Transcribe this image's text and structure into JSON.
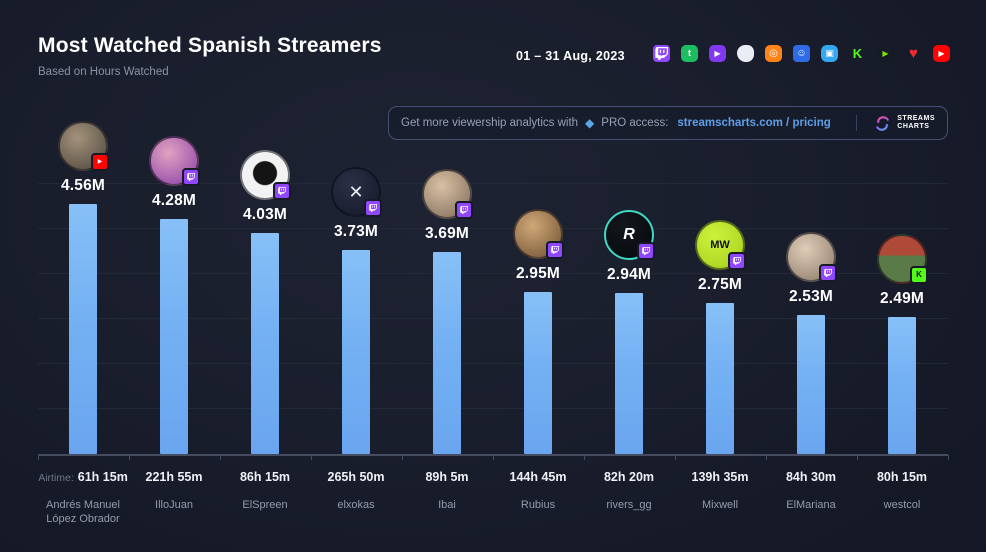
{
  "header": {
    "title": "Most Watched Spanish Streamers",
    "subtitle": "Based on Hours Watched",
    "date_range": "01 – 31 Aug, 2023"
  },
  "platform_bar": {
    "icons": [
      {
        "name": "twitch",
        "bg": "#9146ff",
        "fg": "#ffffff",
        "glyph": "twitch",
        "radius": "4px"
      },
      {
        "name": "trovo",
        "bg": "#1dbe60",
        "fg": "#ffffff",
        "glyph": "dino",
        "radius": "5px"
      },
      {
        "name": "vk-play",
        "bg": "#8038f0",
        "fg": "#ffffff",
        "glyph": "play",
        "radius": "5px"
      },
      {
        "name": "nimo-tv",
        "bg": "#e9edf4",
        "fg": "#c9d2e0",
        "glyph": "ghost",
        "radius": "50% 42% 46% 55%"
      },
      {
        "name": "booyah",
        "bg": "#ff8316",
        "fg": "#ffffff",
        "glyph": "circle",
        "radius": "5px"
      },
      {
        "name": "nonolive",
        "bg": "#2f6be4",
        "fg": "#ffffff",
        "glyph": "face",
        "radius": "4px"
      },
      {
        "name": "bigo-live",
        "bg": "#35a6f0",
        "fg": "#ffffff",
        "glyph": "cam",
        "radius": "6px"
      },
      {
        "name": "kick",
        "bg": "none",
        "fg": "#53fc18",
        "glyph": "K",
        "radius": "0"
      },
      {
        "name": "rumble",
        "bg": "#161b26",
        "fg": "#74e010",
        "glyph": "play",
        "radius": "50%"
      },
      {
        "name": "likee",
        "bg": "none",
        "fg": "#e62e2e",
        "glyph": "heart",
        "radius": "0"
      },
      {
        "name": "youtube",
        "bg": "#ff0202",
        "fg": "#ffffff",
        "glyph": "play",
        "radius": "5px"
      }
    ]
  },
  "promo_banner": {
    "text_prefix": "Get more viewership analytics with",
    "diamond_glyph": "◆",
    "text_mid": "PRO access:",
    "link_label": "streamscharts.com / pricing",
    "logo_line1": "STREAMS",
    "logo_line2": "CHARTS",
    "link_color": "#5f9fe8"
  },
  "chart_data": {
    "type": "bar",
    "title": "Most Watched Spanish Streamers",
    "subtitle": "Based on Hours Watched",
    "period": "01 – 31 Aug, 2023",
    "value_unit": "hours watched (millions)",
    "ylim": [
      0,
      4.56
    ],
    "grid": true,
    "legend": false,
    "bar_color": "#74b1f3",
    "categories": [
      "Andrés Manuel López Obrador",
      "IlloJuan",
      "ElSpreen",
      "elxokas",
      "Ibai",
      "Rubius",
      "rivers_gg",
      "Mixwell",
      "ElMariana",
      "westcol"
    ],
    "series": [
      {
        "name": "Hours Watched",
        "values": [
          4.56,
          4.28,
          4.03,
          3.73,
          3.69,
          2.95,
          2.94,
          2.75,
          2.53,
          2.49
        ],
        "labels": [
          "4.56M",
          "4.28M",
          "4.03M",
          "3.73M",
          "3.69M",
          "2.95M",
          "2.94M",
          "2.75M",
          "2.53M",
          "2.49M"
        ]
      }
    ],
    "airtime_prefix": "Airtime:",
    "airtimes": [
      "61h 15m",
      "221h 55m",
      "86h 15m",
      "265h 50m",
      "89h 5m",
      "144h 45m",
      "82h 20m",
      "139h 35m",
      "84h 30m",
      "80h 15m"
    ],
    "streamers": [
      {
        "name": "Andrés Manuel López Obrador",
        "hours_watched": "4.56M",
        "value_m": 4.56,
        "airtime": "61h 15m",
        "platform": "youtube",
        "avatar": {
          "mode": "radial",
          "bg": [
            "#a4927c",
            "#4e463c"
          ],
          "ring": null,
          "text": "",
          "text_color": "#ffffff",
          "text_size": 12
        }
      },
      {
        "name": "IlloJuan",
        "hours_watched": "4.28M",
        "value_m": 4.28,
        "airtime": "221h 55m",
        "platform": "twitch",
        "avatar": {
          "mode": "radial",
          "bg": [
            "#e0a3c0",
            "#8a3da6"
          ],
          "ring": null,
          "text": "",
          "text_color": "#ffffff",
          "text_size": 12
        }
      },
      {
        "name": "ElSpreen",
        "hours_watched": "4.03M",
        "value_m": 4.03,
        "airtime": "86h 15m",
        "platform": "twitch",
        "avatar": {
          "mode": "silhouette",
          "bg": [
            "#141414",
            "#f2f2f2"
          ],
          "ring": null,
          "text": "",
          "text_color": "#000000",
          "text_size": 12
        }
      },
      {
        "name": "elxokas",
        "hours_watched": "3.73M",
        "value_m": 3.73,
        "airtime": "265h 50m",
        "platform": "twitch",
        "avatar": {
          "mode": "radial",
          "bg": [
            "#2b3048",
            "#141827"
          ],
          "ring": null,
          "text": "✕",
          "text_color": "#e8ecf2",
          "text_size": 18
        }
      },
      {
        "name": "Ibai",
        "hours_watched": "3.69M",
        "value_m": 3.69,
        "airtime": "89h 5m",
        "platform": "twitch",
        "avatar": {
          "mode": "radial",
          "bg": [
            "#d8c0a4",
            "#7e6a58"
          ],
          "ring": null,
          "text": "",
          "text_color": "#ffffff",
          "text_size": 12
        }
      },
      {
        "name": "Rubius",
        "hours_watched": "2.95M",
        "value_m": 2.95,
        "airtime": "144h 45m",
        "platform": "twitch",
        "avatar": {
          "mode": "radial",
          "bg": [
            "#d0a878",
            "#6e5030"
          ],
          "ring": null,
          "text": "",
          "text_color": "#ffffff",
          "text_size": 12
        }
      },
      {
        "name": "rivers_gg",
        "hours_watched": "2.94M",
        "value_m": 2.94,
        "airtime": "82h 20m",
        "platform": "twitch",
        "avatar": {
          "mode": "radial",
          "bg": [
            "#13181d",
            "#05070a"
          ],
          "ring": "#3fd8c4",
          "text": "R",
          "text_color": "#ffffff",
          "text_size": 16
        }
      },
      {
        "name": "Mixwell",
        "hours_watched": "2.75M",
        "value_m": 2.75,
        "airtime": "139h 35m",
        "platform": "twitch",
        "avatar": {
          "mode": "radial",
          "bg": [
            "#cdf23c",
            "#a4cf1c"
          ],
          "ring": null,
          "text": "MW",
          "text_color": "#111111",
          "text_size": 11
        }
      },
      {
        "name": "ElMariana",
        "hours_watched": "2.53M",
        "value_m": 2.53,
        "airtime": "84h 30m",
        "platform": "twitch",
        "avatar": {
          "mode": "radial",
          "bg": [
            "#e0cdb8",
            "#8a7868"
          ],
          "ring": null,
          "text": "",
          "text_color": "#ffffff",
          "text_size": 12
        }
      },
      {
        "name": "westcol",
        "hours_watched": "2.49M",
        "value_m": 2.49,
        "airtime": "80h 15m",
        "platform": "kick",
        "avatar": {
          "mode": "split",
          "bg": [
            "#b04a38",
            "#5a7a48"
          ],
          "ring": null,
          "text": "",
          "text_color": "#ffffff",
          "text_size": 12
        }
      }
    ],
    "platform_badge_colors": {
      "twitch": "#9146ff",
      "youtube": "#ff0202",
      "kick": "#53fc18"
    }
  }
}
